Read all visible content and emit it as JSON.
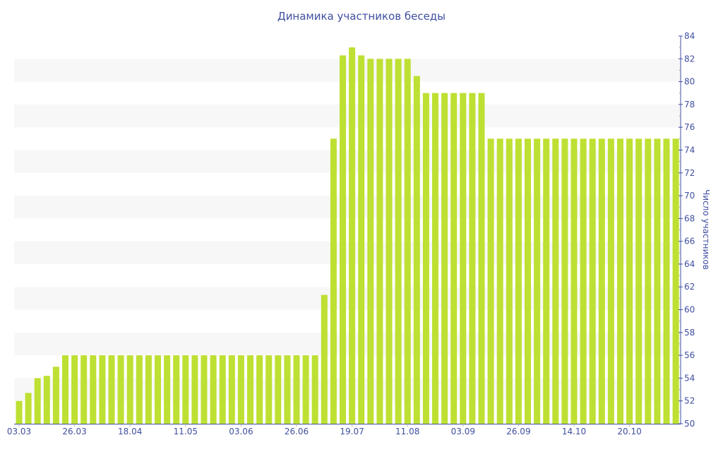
{
  "chart_data": {
    "type": "bar",
    "title": "Динамика участников беседы",
    "xlabel": "",
    "ylabel": "Число участников",
    "ylim": [
      50,
      84
    ],
    "ytick_step": 2,
    "y_axis_side": "right",
    "grid": "alternating horizontal bands",
    "bar_color": "#bde033",
    "text_color": "#3f4fa0",
    "band_color": "#f7f7f7",
    "x_tick_labels": [
      {
        "index": 0,
        "label": "03.03"
      },
      {
        "index": 6,
        "label": "26.03"
      },
      {
        "index": 12,
        "label": "18.04"
      },
      {
        "index": 18,
        "label": "11.05"
      },
      {
        "index": 24,
        "label": "03.06"
      },
      {
        "index": 30,
        "label": "26.06"
      },
      {
        "index": 36,
        "label": "19.07"
      },
      {
        "index": 42,
        "label": "11.08"
      },
      {
        "index": 48,
        "label": "03.09"
      },
      {
        "index": 54,
        "label": "26.09"
      },
      {
        "index": 60,
        "label": "14.10"
      },
      {
        "index": 66,
        "label": "20.10"
      }
    ],
    "values": [
      52,
      52.7,
      54,
      54.2,
      55,
      56,
      56,
      56,
      56,
      56,
      56,
      56,
      56,
      56,
      56,
      56,
      56,
      56,
      56,
      56,
      56,
      56,
      56,
      56,
      56,
      56,
      56,
      56,
      56,
      56,
      56,
      56,
      56,
      61.3,
      75,
      82.3,
      83,
      82.3,
      82,
      82,
      82,
      82,
      82,
      80.5,
      79,
      79,
      79,
      79,
      79,
      79,
      79,
      75,
      75,
      75,
      75,
      75,
      75,
      75,
      75,
      75,
      75,
      75,
      75,
      75,
      75,
      75,
      75,
      75,
      75,
      75,
      75,
      75
    ]
  }
}
